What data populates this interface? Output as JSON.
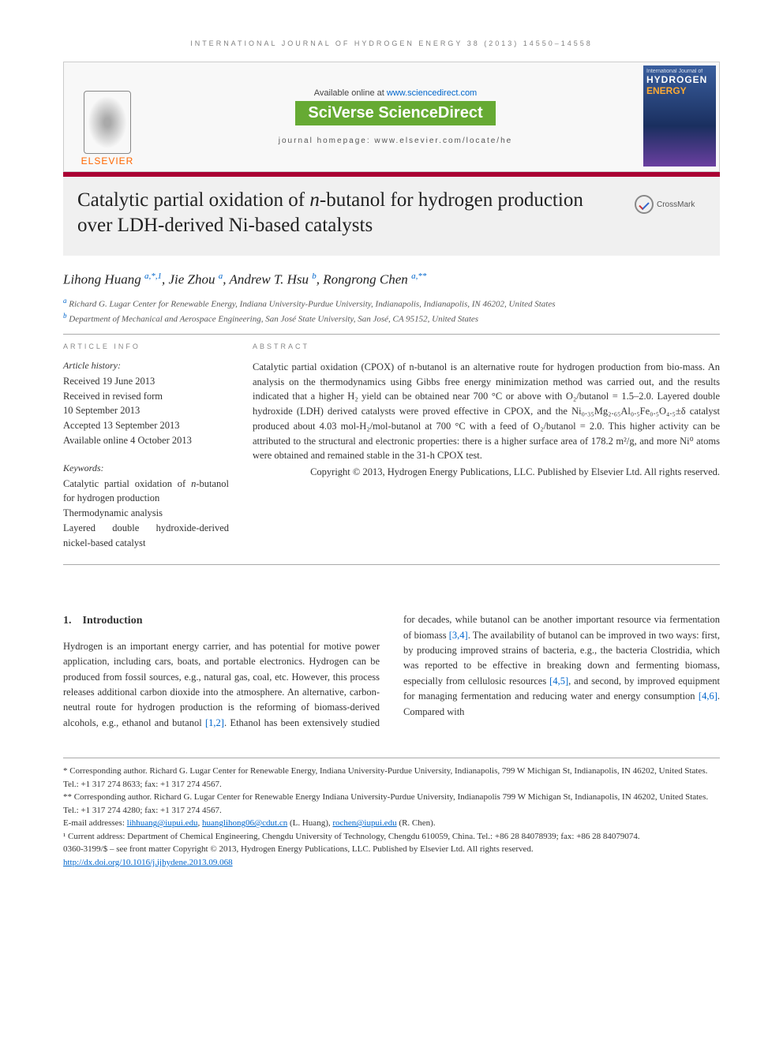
{
  "colors": {
    "accent_red": "#aa0033",
    "link_blue": "#0066cc",
    "publisher_orange": "#ff6600",
    "sciverse_green": "#66aa33",
    "text": "#333333",
    "muted": "#808080",
    "box_border": "#cccccc",
    "box_bg": "#f8f8f8",
    "title_bg": "#f0f0f0"
  },
  "typography": {
    "body_font": "Georgia, 'Times New Roman', serif",
    "sans_font": "Arial, sans-serif",
    "body_size_pt": 12.5,
    "title_size_pt": 25,
    "author_size_pt": 17,
    "affil_size_pt": 11,
    "footnote_size_pt": 11
  },
  "running_head": "INTERNATIONAL JOURNAL OF HYDROGEN ENERGY 38 (2013) 14550–14558",
  "topbox": {
    "publisher": "ELSEVIER",
    "available_prefix": "Available online at ",
    "available_url": "www.sciencedirect.com",
    "brand": "SciVerse ScienceDirect",
    "homepage_label": "journal homepage: www.elsevier.com/locate/he",
    "cover_line1": "International Journal of",
    "cover_line2": "HYDROGEN",
    "cover_line3": "ENERGY"
  },
  "title": {
    "pre": "Catalytic partial oxidation of ",
    "ital": "n",
    "post": "-butanol for hydrogen production over LDH-derived Ni-based catalysts"
  },
  "crossmark_label": "CrossMark",
  "authors_html": "Lihong Huang <span class='sup'>a,*,1</span>, Jie Zhou <span class='sup'>a</span>, Andrew T. Hsu <span class='sup'>b</span>, Rongrong Chen <span class='sup'>a,**</span>",
  "affiliations": [
    {
      "mark": "a",
      "text": "Richard G. Lugar Center for Renewable Energy, Indiana University-Purdue University, Indianapolis, Indianapolis, IN 46202, United States"
    },
    {
      "mark": "b",
      "text": "Department of Mechanical and Aerospace Engineering, San José State University, San José, CA 95152, United States"
    }
  ],
  "article_info": {
    "head": "ARTICLE INFO",
    "history_head": "Article history:",
    "history": "Received 19 June 2013\nReceived in revised form\n10 September 2013\nAccepted 13 September 2013\nAvailable online 4 October 2013",
    "keywords_head": "Keywords:",
    "keywords": "Catalytic partial oxidation of n-butanol for hydrogen production\nThermodynamic analysis\nLayered double hydroxide-derived nickel-based catalyst"
  },
  "abstract": {
    "head": "ABSTRACT",
    "body": "Catalytic partial oxidation (CPOX) of n-butanol is an alternative route for hydrogen production from bio-mass. An analysis on the thermodynamics using Gibbs free energy minimization method was carried out, and the results indicated that a higher H₂ yield can be obtained near 700 °C or above with O₂/butanol = 1.5–2.0. Layered double hydroxide (LDH) derived catalysts were proved effective in CPOX, and the Ni₀.₃₅Mg₂.₆₅Al₀.₅Fe₀.₅O₄.₅±δ catalyst produced about 4.03 mol-H₂/mol-butanol at 700 °C with a feed of O₂/butanol = 2.0. This higher activity can be attributed to the structural and electronic properties: there is a higher surface area of 178.2 m²/g, and more Ni⁰ atoms were obtained and remained stable in the 31-h CPOX test.",
    "copyright": "Copyright © 2013, Hydrogen Energy Publications, LLC. Published by Elsevier Ltd. All rights reserved."
  },
  "section1": {
    "heading": "1. Introduction",
    "col1": "Hydrogen is an important energy carrier, and has potential for motive power application, including cars, boats, and portable electronics. Hydrogen can be produced from fossil sources, e.g., natural gas, coal, etc. However, this process releases additional carbon dioxide into the atmosphere. An alternative, carbon-neutral route for hydrogen production is the reforming of biomass-derived alcohols, e.g., ethanol and",
    "col2_a": "butanol ",
    "col2_ref1": "[1,2]",
    "col2_b": ". Ethanol has been extensively studied for decades, while butanol can be another important resource via fermentation of biomass ",
    "col2_ref2": "[3,4]",
    "col2_c": ". The availability of butanol can be improved in two ways: first, by producing improved strains of bacteria, e.g., the bacteria Clostridia, which was reported to be effective in breaking down and fermenting biomass, especially from cellulosic resources ",
    "col2_ref3": "[4,5]",
    "col2_d": ", and second, by improved equipment for managing fermentation and reducing water and energy consumption ",
    "col2_ref4": "[4,6]",
    "col2_e": ". Compared with"
  },
  "footnotes": {
    "f1": "* Corresponding author. Richard G. Lugar Center for Renewable Energy, Indiana University-Purdue University, Indianapolis, 799 W Michigan St, Indianapolis, IN 46202, United States. Tel.: +1 317 274 8633; fax: +1 317 274 4567.",
    "f2": "** Corresponding author. Richard G. Lugar Center for Renewable Energy Indiana University-Purdue University, Indianapolis 799 W Michigan St, Indianapolis, IN 46202, United States. Tel.: +1 317 274 4280; fax: +1 317 274 4567.",
    "email_label": "E-mail addresses: ",
    "email1": "lihhuang@iupui.edu",
    "email_sep1": ", ",
    "email2": "huanglihong06@cdut.cn",
    "email_paren1": " (L. Huang), ",
    "email3": "rochen@iupui.edu",
    "email_paren2": " (R. Chen).",
    "f3": "¹ Current address: Department of Chemical Engineering, Chengdu University of Technology, Chengdu 610059, China. Tel.: +86 28 84078939; fax: +86 28 84079074.",
    "issn": "0360-3199/$ – see front matter Copyright © 2013, Hydrogen Energy Publications, LLC. Published by Elsevier Ltd. All rights reserved.",
    "doi": "http://dx.doi.org/10.1016/j.ijhydene.2013.09.068"
  }
}
